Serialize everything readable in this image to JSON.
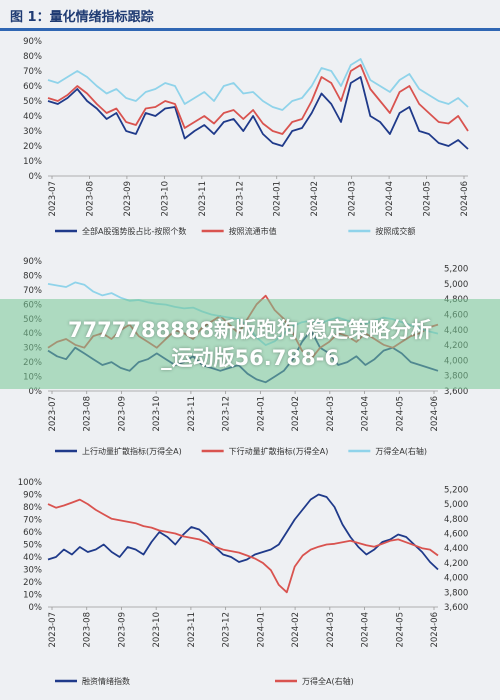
{
  "header": {
    "title": "图 1：量化情绪指标跟踪"
  },
  "watermark": {
    "line1": "7777788888新版跑狗,稳定策略分析",
    "line2": "_运动版56.788-6"
  },
  "colors": {
    "navy": "#1f3a8a",
    "red": "#d9534f",
    "light_blue": "#8fd3ea",
    "teal": "#2a7f86",
    "banner": "#7bc896"
  },
  "chart_data": [
    {
      "type": "line",
      "title": "",
      "x_ticks": [
        "2023-07",
        "2023-08",
        "2023-09",
        "2023-10",
        "2023-11",
        "2023-12",
        "2024-01",
        "2024-02",
        "2024-03",
        "2024-04",
        "2024-05",
        "2024-06"
      ],
      "ylim": [
        0,
        90
      ],
      "y_ticks": [
        "0%",
        "10%",
        "20%",
        "30%",
        "40%",
        "50%",
        "60%",
        "70%",
        "80%",
        "90%"
      ],
      "legend_position": "bottom",
      "series": [
        {
          "name": "全部A股强势股占比-按照个数",
          "color": "#1f3a8a",
          "axis": "left",
          "values": [
            50,
            48,
            52,
            58,
            50,
            45,
            38,
            42,
            30,
            28,
            42,
            40,
            45,
            46,
            25,
            30,
            34,
            28,
            36,
            38,
            30,
            40,
            28,
            22,
            20,
            30,
            32,
            42,
            55,
            48,
            36,
            62,
            66,
            40,
            36,
            28,
            42,
            46,
            30,
            28,
            22,
            20,
            24,
            18
          ]
        },
        {
          "name": "按照流通市值",
          "color": "#d9534f",
          "axis": "left",
          "values": [
            52,
            50,
            54,
            60,
            55,
            48,
            42,
            45,
            36,
            34,
            45,
            46,
            50,
            48,
            32,
            36,
            40,
            35,
            42,
            44,
            38,
            44,
            35,
            30,
            28,
            36,
            38,
            50,
            66,
            62,
            50,
            70,
            74,
            58,
            50,
            42,
            56,
            60,
            48,
            42,
            36,
            35,
            40,
            30
          ]
        },
        {
          "name": "按照成交额",
          "color": "#8fd3ea",
          "axis": "left",
          "values": [
            64,
            62,
            66,
            70,
            66,
            60,
            55,
            58,
            52,
            50,
            56,
            58,
            62,
            60,
            48,
            52,
            56,
            50,
            60,
            62,
            55,
            56,
            50,
            46,
            44,
            50,
            52,
            60,
            72,
            70,
            60,
            74,
            78,
            64,
            60,
            56,
            64,
            68,
            58,
            54,
            50,
            48,
            52,
            46
          ]
        }
      ]
    },
    {
      "type": "line",
      "title": "",
      "x_ticks": [
        "2023-07",
        "2023-08",
        "2023-09",
        "2023-10",
        "2023-11",
        "2023-12",
        "2024-01",
        "2024-02",
        "2024-03",
        "2024-04",
        "2024-05",
        "2024-06"
      ],
      "ylim": [
        0,
        90
      ],
      "y_ticks": [
        "0%",
        "10%",
        "20%",
        "30%",
        "40%",
        "50%",
        "60%",
        "70%",
        "80%",
        "90%"
      ],
      "y2lim": [
        3600,
        5300
      ],
      "y2_ticks": [
        "3,600",
        "3,800",
        "4,000",
        "4,200",
        "4,400",
        "4,600",
        "4,800",
        "5,000",
        "5,200"
      ],
      "legend_position": "bottom",
      "series": [
        {
          "name": "上行动量扩散指标(万得全A)",
          "color": "#1f3a8a",
          "axis": "left",
          "values": [
            28,
            24,
            22,
            30,
            26,
            22,
            18,
            20,
            16,
            14,
            20,
            22,
            26,
            22,
            18,
            20,
            24,
            18,
            16,
            14,
            16,
            18,
            12,
            8,
            6,
            10,
            14,
            22,
            34,
            42,
            30,
            26,
            18,
            20,
            24,
            18,
            22,
            28,
            30,
            26,
            20,
            18,
            16,
            14
          ]
        },
        {
          "name": "下行动量扩散指标(万得全A)",
          "color": "#d9534f",
          "axis": "left",
          "values": [
            30,
            34,
            36,
            32,
            30,
            38,
            40,
            36,
            42,
            46,
            38,
            34,
            30,
            36,
            42,
            40,
            36,
            44,
            48,
            52,
            46,
            40,
            50,
            60,
            66,
            56,
            50,
            40,
            28,
            22,
            30,
            34,
            40,
            38,
            34,
            40,
            36,
            32,
            30,
            34,
            38,
            40,
            44,
            46
          ]
        },
        {
          "name": "万得全A(右轴)",
          "color": "#8fd3ea",
          "axis": "right",
          "values": [
            5000,
            4980,
            4960,
            5020,
            4990,
            4900,
            4850,
            4880,
            4820,
            4780,
            4790,
            4760,
            4740,
            4730,
            4700,
            4680,
            4690,
            4640,
            4600,
            4580,
            4560,
            4540,
            4450,
            4300,
            4200,
            4250,
            4350,
            4450,
            4500,
            4520,
            4480,
            4530,
            4560,
            4520,
            4500,
            4480,
            4520,
            4560,
            4540,
            4500,
            4460,
            4420,
            4380,
            4350
          ]
        }
      ]
    },
    {
      "type": "line",
      "title": "",
      "x_ticks": [
        "2023-07",
        "2023-08",
        "2023-09",
        "2023-10",
        "2023-11",
        "2023-12",
        "2024-01",
        "2024-02",
        "2024-03",
        "2024-04",
        "2024-05",
        "2024-06"
      ],
      "ylim": [
        0,
        100
      ],
      "y_ticks": [
        "0%",
        "10%",
        "20%",
        "30%",
        "40%",
        "50%",
        "60%",
        "70%",
        "80%",
        "90%",
        "100%"
      ],
      "y2lim": [
        3600,
        5300
      ],
      "y2_ticks": [
        "3,600",
        "3,800",
        "4,000",
        "4,200",
        "4,400",
        "4,600",
        "4,800",
        "5,000",
        "5,200"
      ],
      "legend_position": "bottom",
      "series": [
        {
          "name": "融资情绪指数",
          "color": "#1f3a8a",
          "axis": "left",
          "values": [
            38,
            40,
            46,
            42,
            48,
            44,
            46,
            50,
            44,
            40,
            48,
            46,
            42,
            52,
            60,
            56,
            50,
            58,
            64,
            62,
            56,
            48,
            42,
            40,
            36,
            38,
            42,
            44,
            46,
            50,
            60,
            70,
            78,
            86,
            90,
            88,
            80,
            66,
            56,
            48,
            42,
            46,
            52,
            54,
            58,
            56,
            50,
            44,
            36,
            30
          ]
        },
        {
          "name": "万得全A(右轴)",
          "color": "#d9534f",
          "axis": "right",
          "values": [
            5000,
            4950,
            4980,
            5020,
            5060,
            5000,
            4920,
            4860,
            4800,
            4780,
            4760,
            4740,
            4700,
            4680,
            4640,
            4620,
            4600,
            4560,
            4540,
            4520,
            4480,
            4420,
            4380,
            4360,
            4340,
            4300,
            4260,
            4200,
            4100,
            3900,
            3800,
            4150,
            4300,
            4380,
            4420,
            4450,
            4460,
            4480,
            4500,
            4470,
            4440,
            4420,
            4460,
            4500,
            4520,
            4480,
            4440,
            4400,
            4380,
            4300
          ]
        }
      ]
    }
  ]
}
